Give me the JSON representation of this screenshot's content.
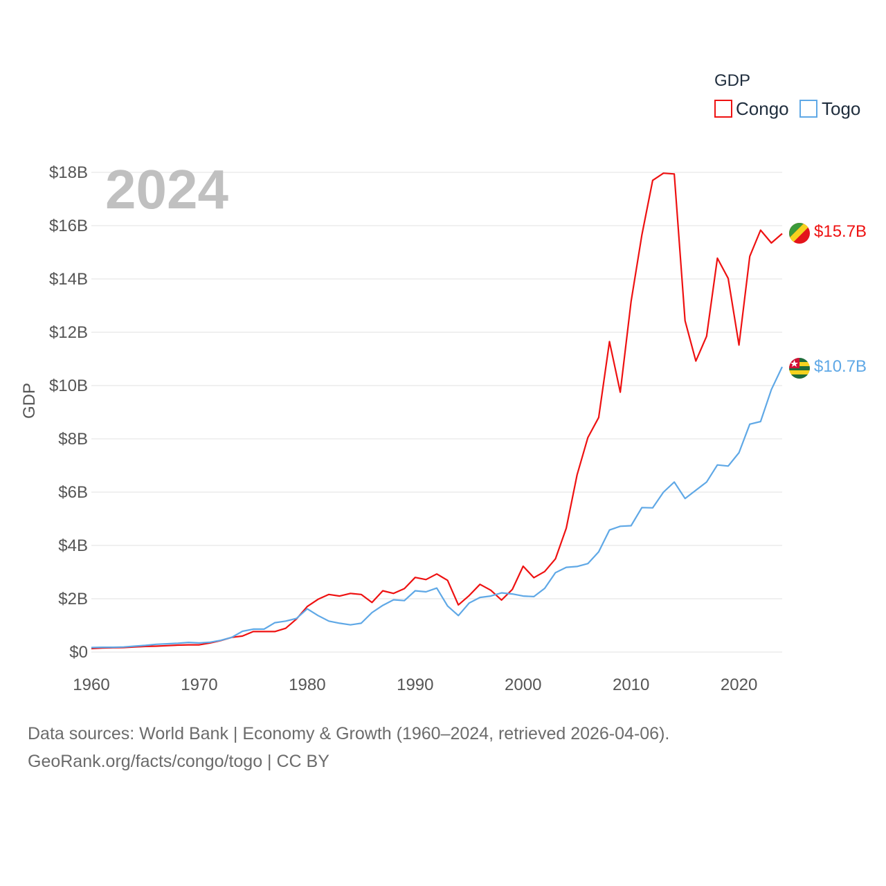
{
  "legend": {
    "title": "GDP",
    "items": [
      {
        "name": "Congo",
        "color": "#ee1111"
      },
      {
        "name": "Togo",
        "color": "#5fa8e6"
      }
    ]
  },
  "year_label": "2024",
  "footer": {
    "line1": "Data sources: World Bank | Economy & Growth (1960–2024, retrieved 2026-04-06).",
    "line2": "GeoRank.org/facts/congo/togo | CC BY"
  },
  "chart_data": {
    "type": "line",
    "title": "",
    "xlabel": "",
    "ylabel": "GDP",
    "xlim": [
      1960,
      2024
    ],
    "ylim": [
      0,
      18
    ],
    "x_ticks": [
      1960,
      1970,
      1980,
      1990,
      2000,
      2010,
      2020
    ],
    "y_ticks": [
      0,
      2,
      4,
      6,
      8,
      10,
      12,
      14,
      16,
      18
    ],
    "y_tick_labels": [
      "$0",
      "$2B",
      "$4B",
      "$6B",
      "$8B",
      "$10B",
      "$12B",
      "$14B",
      "$16B",
      "$18B"
    ],
    "x": [
      1960,
      1961,
      1962,
      1963,
      1964,
      1965,
      1966,
      1967,
      1968,
      1969,
      1970,
      1971,
      1972,
      1973,
      1974,
      1975,
      1976,
      1977,
      1978,
      1979,
      1980,
      1981,
      1982,
      1983,
      1984,
      1985,
      1986,
      1987,
      1988,
      1989,
      1990,
      1991,
      1992,
      1993,
      1994,
      1995,
      1996,
      1997,
      1998,
      1999,
      2000,
      2001,
      2002,
      2003,
      2004,
      2005,
      2006,
      2007,
      2008,
      2009,
      2010,
      2011,
      2012,
      2013,
      2014,
      2015,
      2016,
      2017,
      2018,
      2019,
      2020,
      2021,
      2022,
      2023,
      2024
    ],
    "series": [
      {
        "name": "Congo",
        "color": "#ee1111",
        "end_label": "$15.7B",
        "values": [
          0.13,
          0.15,
          0.16,
          0.17,
          0.19,
          0.21,
          0.22,
          0.24,
          0.26,
          0.27,
          0.27,
          0.34,
          0.43,
          0.55,
          0.6,
          0.77,
          0.77,
          0.77,
          0.89,
          1.24,
          1.71,
          1.98,
          2.16,
          2.1,
          2.2,
          2.16,
          1.86,
          2.3,
          2.2,
          2.38,
          2.8,
          2.72,
          2.93,
          2.69,
          1.77,
          2.12,
          2.54,
          2.32,
          1.95,
          2.35,
          3.22,
          2.79,
          3.02,
          3.5,
          4.65,
          6.65,
          8.05,
          8.8,
          11.65,
          9.75,
          13.15,
          15.65,
          17.7,
          17.97,
          17.94,
          12.43,
          10.92,
          11.85,
          14.78,
          14.02,
          11.52,
          14.85,
          15.83,
          15.35,
          15.7
        ]
      },
      {
        "name": "Togo",
        "color": "#5fa8e6",
        "end_label": "$10.7B",
        "values": [
          0.17,
          0.18,
          0.18,
          0.19,
          0.22,
          0.25,
          0.29,
          0.31,
          0.33,
          0.36,
          0.34,
          0.37,
          0.44,
          0.55,
          0.78,
          0.86,
          0.86,
          1.1,
          1.16,
          1.26,
          1.62,
          1.37,
          1.16,
          1.08,
          1.02,
          1.08,
          1.48,
          1.75,
          1.96,
          1.93,
          2.3,
          2.26,
          2.4,
          1.73,
          1.37,
          1.84,
          2.05,
          2.1,
          2.22,
          2.18,
          2.1,
          2.08,
          2.39,
          2.98,
          3.18,
          3.21,
          3.32,
          3.76,
          4.58,
          4.72,
          4.74,
          5.42,
          5.41,
          6.0,
          6.38,
          5.76,
          6.07,
          6.38,
          7.02,
          6.98,
          7.48,
          8.55,
          8.65,
          9.85,
          10.7
        ]
      }
    ]
  }
}
